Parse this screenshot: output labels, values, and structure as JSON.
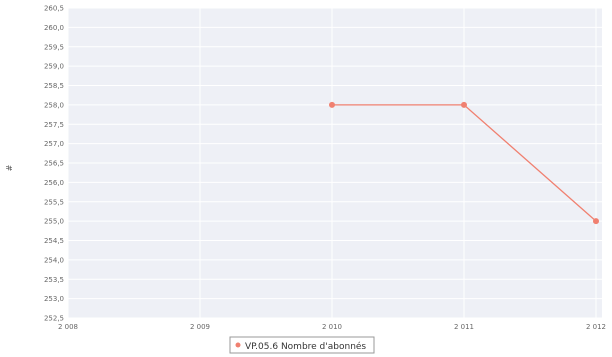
{
  "chart_data": {
    "type": "line",
    "title": "",
    "xlabel": "",
    "ylabel": "#",
    "x_ticks": [
      "2 008",
      "2 009",
      "2 010",
      "2 011",
      "2 012"
    ],
    "y_ticks": [
      "252,5",
      "253,0",
      "253,5",
      "254,0",
      "254,5",
      "255,0",
      "255,5",
      "256,0",
      "256,5",
      "257,0",
      "257,5",
      "258,0",
      "258,5",
      "259,0",
      "259,5",
      "260,0",
      "260,5"
    ],
    "ylim": [
      252.5,
      260.5
    ],
    "xlim": [
      2008,
      2012
    ],
    "grid": true,
    "legend_position": "bottom",
    "series": [
      {
        "name": "VP.05.6 Nombre d'abonnés",
        "color": "#f08070",
        "x": [
          2010,
          2011,
          2012
        ],
        "values": [
          258.0,
          258.0,
          255.0
        ]
      }
    ]
  }
}
